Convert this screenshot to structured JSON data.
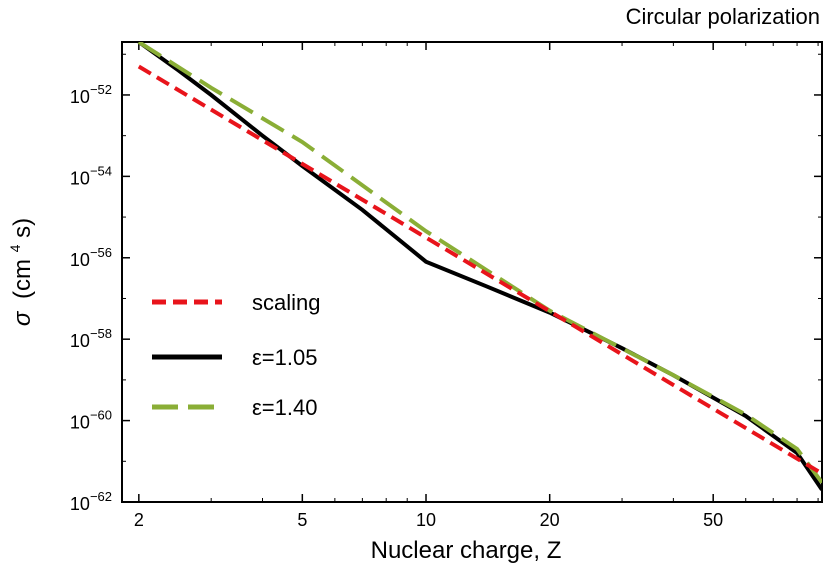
{
  "chart_data": {
    "type": "line",
    "title": "Circular polarization",
    "xlabel": "Nuclear charge, Z",
    "ylabel_symbol": "σ",
    "ylabel_unit_pre": "(cm",
    "ylabel_unit_sup": "4",
    "ylabel_unit_post": "s)",
    "x_scale": "log",
    "y_scale": "log",
    "xlim": [
      1.82,
      92
    ],
    "ylim": [
      1e-62,
      2e-51
    ],
    "x_ticks": [
      {
        "value": 2,
        "label": "2"
      },
      {
        "value": 5,
        "label": "5"
      },
      {
        "value": 10,
        "label": "10"
      },
      {
        "value": 20,
        "label": "20"
      },
      {
        "value": 50,
        "label": "50"
      }
    ],
    "y_ticks": [
      {
        "exp": -62,
        "base": "10",
        "sup": "−62"
      },
      {
        "exp": -60,
        "base": "10",
        "sup": "−60"
      },
      {
        "exp": -58,
        "base": "10",
        "sup": "−58"
      },
      {
        "exp": -56,
        "base": "10",
        "sup": "−56"
      },
      {
        "exp": -54,
        "base": "10",
        "sup": "−54"
      },
      {
        "exp": -52,
        "base": "10",
        "sup": "−52"
      }
    ],
    "grid": false,
    "legend_position": "left-lower",
    "series": [
      {
        "name": "scaling",
        "color": "#e8141b",
        "dash": "dashed-short",
        "x": [
          2,
          92
        ],
        "y": [
          5e-52,
          5e-62
        ]
      },
      {
        "name": "ε=1.05",
        "color": "#000000",
        "dash": "solid",
        "x": [
          2,
          2.5,
          3,
          4,
          5,
          7,
          10,
          14,
          20,
          30,
          40,
          60,
          80,
          92
        ],
        "y": [
          2e-51,
          4e-52,
          1e-52,
          1e-53,
          1.8e-54,
          1.5e-55,
          8e-57,
          2e-57,
          4.5e-58,
          6e-59,
          1.3e-59,
          1.3e-60,
          1.6e-61,
          2e-62
        ]
      },
      {
        "name": "ε=1.40",
        "color": "#8aae36",
        "dash": "dashed-long",
        "x": [
          2,
          3,
          5,
          10,
          20,
          40,
          60,
          80,
          92
        ],
        "y": [
          2e-51,
          1.5e-52,
          7e-54,
          4.5e-56,
          5e-58,
          1.3e-59,
          1.4e-60,
          2e-61,
          3e-62
        ]
      }
    ]
  }
}
